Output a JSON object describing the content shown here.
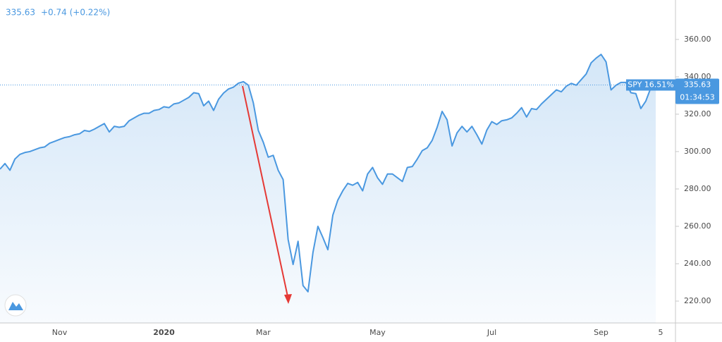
{
  "chart_data": {
    "type": "area",
    "symbol": "SPY",
    "last": "335.63",
    "change": "+0.74 (+0.22%)",
    "categories": [
      null,
      null,
      null,
      null,
      null,
      null,
      null,
      null,
      null,
      null,
      null,
      null,
      "Nov",
      null,
      null,
      null,
      null,
      null,
      null,
      null,
      null,
      null,
      null,
      null,
      null,
      null,
      null,
      null,
      null,
      null,
      null,
      null,
      null,
      "2020",
      null,
      null,
      null,
      null,
      null,
      null,
      null,
      null,
      null,
      null,
      null,
      null,
      null,
      null,
      null,
      null,
      null,
      null,
      null,
      "Mar",
      null,
      null,
      null,
      null,
      null,
      null,
      null,
      null,
      null,
      null,
      null,
      null,
      null,
      null,
      null,
      null,
      null,
      null,
      null,
      null,
      null,
      null,
      "May",
      null,
      null,
      null,
      null,
      null,
      null,
      null,
      null,
      null,
      null,
      null,
      null,
      null,
      null,
      null,
      null,
      null,
      null,
      null,
      null,
      null,
      null,
      "Jul",
      null,
      null,
      null,
      null,
      null,
      null,
      null,
      null,
      null,
      null,
      null,
      null,
      null,
      null,
      null,
      null,
      null,
      null,
      null,
      null,
      null,
      "Sep",
      null,
      null,
      null,
      null,
      null,
      null,
      null,
      null,
      null,
      null,
      null,
      "5"
    ],
    "values": [
      290.6,
      293.6,
      290,
      296,
      298.5,
      299.5,
      300,
      301,
      302,
      302.5,
      304.5,
      305.5,
      306.5,
      307.5,
      308,
      309,
      309.5,
      311.3,
      310.8,
      312,
      313.5,
      315,
      310.5,
      313.5,
      313,
      313.5,
      316.5,
      318,
      319.5,
      320.5,
      320.5,
      322,
      322.5,
      324,
      323.5,
      325.5,
      326,
      327.5,
      329,
      331.5,
      331,
      324.5,
      327,
      322,
      328,
      331.3,
      333.5,
      334.5,
      336.6,
      337.4,
      335.5,
      326,
      311.3,
      305,
      297,
      298,
      290,
      285,
      253,
      239.6,
      252,
      228.3,
      225,
      246,
      260,
      254,
      247.5,
      266,
      274,
      279,
      283,
      282,
      283.5,
      279,
      288,
      291.5,
      286,
      282.5,
      288,
      288,
      286,
      284,
      291.5,
      292,
      296,
      300.5,
      302,
      306,
      313,
      321.5,
      317,
      303,
      310,
      313.5,
      310.5,
      313.5,
      309,
      304,
      311.5,
      316,
      314.5,
      316.5,
      317,
      318,
      320.5,
      323.5,
      318.5,
      323,
      322.5,
      325.5,
      328,
      330.5,
      333,
      332,
      335,
      336.5,
      335.5,
      338.5,
      341.5,
      347.5,
      350,
      352,
      348,
      333,
      335.5,
      337,
      337,
      331.5,
      331,
      323,
      327,
      334,
      335.63,
      null
    ],
    "color": "#4a98e0",
    "ylim": [
      208.3,
      381.1
    ],
    "yticks": [
      {
        "value": 220,
        "label": "220.00"
      },
      {
        "value": 240,
        "label": "240.00"
      },
      {
        "value": 260,
        "label": "260.00"
      },
      {
        "value": 280,
        "label": "280.00"
      },
      {
        "value": 300,
        "label": "300.00"
      },
      {
        "value": 320,
        "label": "320.00"
      },
      {
        "value": 340,
        "label": "340.00"
      },
      {
        "value": 360,
        "label": "360.00"
      }
    ],
    "price_line": {
      "value": 335.63,
      "label": "335.63"
    },
    "change_label": "SPY 16.51%",
    "countdown": "01:34:53",
    "grid": false
  }
}
